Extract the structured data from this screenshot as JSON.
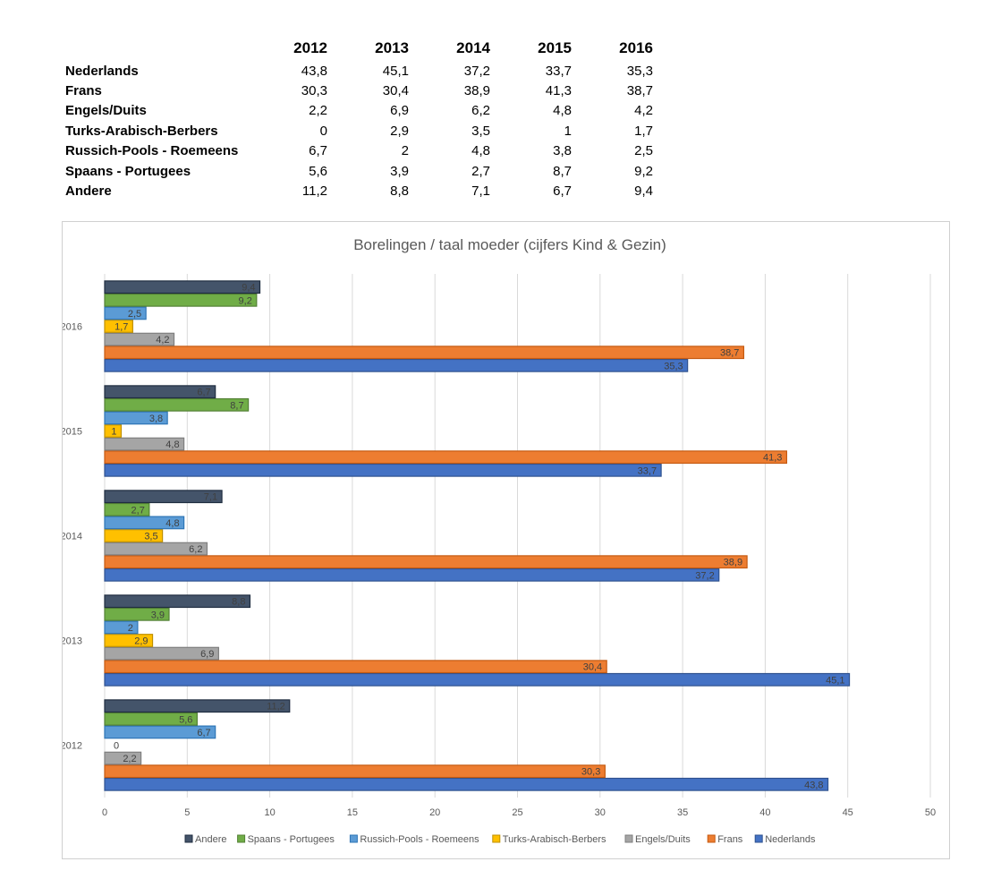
{
  "table": {
    "header": [
      "",
      "2012",
      "2013",
      "2014",
      "2015",
      "2016"
    ],
    "rows": [
      {
        "label": "Nederlands",
        "cells": [
          "43,8",
          "45,1",
          "37,2",
          "33,7",
          "35,3"
        ]
      },
      {
        "label": "Frans",
        "cells": [
          "30,3",
          "30,4",
          "38,9",
          "41,3",
          "38,7"
        ]
      },
      {
        "label": "Engels/Duits",
        "cells": [
          "2,2",
          "6,9",
          "6,2",
          "4,8",
          "4,2"
        ]
      },
      {
        "label": "Turks-Arabisch-Berbers",
        "cells": [
          "0",
          "2,9",
          "3,5",
          "1",
          "1,7"
        ]
      },
      {
        "label": "Russich-Pools - Roemeens",
        "cells": [
          "6,7",
          "2",
          "4,8",
          "3,8",
          "2,5"
        ]
      },
      {
        "label": "Spaans - Portugees",
        "cells": [
          "5,6",
          "3,9",
          "2,7",
          "8,7",
          "9,2"
        ]
      },
      {
        "label": "Andere",
        "cells": [
          "11,2",
          "8,8",
          "7,1",
          "6,7",
          "9,4"
        ]
      }
    ]
  },
  "chart_data": {
    "type": "bar",
    "orientation": "horizontal",
    "title": "Borelingen /  taal moeder (cijfers Kind & Gezin)",
    "categories": [
      "2012",
      "2013",
      "2014",
      "2015",
      "2016"
    ],
    "xlim": [
      0,
      50
    ],
    "xticks": [
      0,
      5,
      10,
      15,
      20,
      25,
      30,
      35,
      40,
      45,
      50
    ],
    "grid": true,
    "legend_position": "bottom",
    "series": [
      {
        "name": "Nederlands",
        "color": "#4472C4",
        "border": "#2F528F",
        "values": [
          43.8,
          45.1,
          37.2,
          33.7,
          35.3
        ],
        "labels": [
          "43,8",
          "45,1",
          "37,2",
          "33,7",
          "35,3"
        ]
      },
      {
        "name": "Frans",
        "color": "#ED7D31",
        "border": "#C55A11",
        "values": [
          30.3,
          30.4,
          38.9,
          41.3,
          38.7
        ],
        "labels": [
          "30,3",
          "30,4",
          "38,9",
          "41,3",
          "38,7"
        ]
      },
      {
        "name": "Engels/Duits",
        "color": "#A5A5A5",
        "border": "#7F7F7F",
        "values": [
          2.2,
          6.9,
          6.2,
          4.8,
          4.2
        ],
        "labels": [
          "2,2",
          "6,9",
          "6,2",
          "4,8",
          "4,2"
        ]
      },
      {
        "name": "Turks-Arabisch-Berbers",
        "color": "#FFC000",
        "border": "#BF9000",
        "values": [
          0,
          2.9,
          3.5,
          1,
          1.7
        ],
        "labels": [
          "0",
          "2,9",
          "3,5",
          "1",
          "1,7"
        ]
      },
      {
        "name": "Russich-Pools - Roemeens",
        "color": "#5B9BD5",
        "border": "#2E75B6",
        "values": [
          6.7,
          2,
          4.8,
          3.8,
          2.5
        ],
        "labels": [
          "6,7",
          "2",
          "4,8",
          "3,8",
          "2,5"
        ]
      },
      {
        "name": "Spaans - Portugees",
        "color": "#70AD47",
        "border": "#538135",
        "values": [
          5.6,
          3.9,
          2.7,
          8.7,
          9.2
        ],
        "labels": [
          "5,6",
          "3,9",
          "2,7",
          "8,7",
          "9,2"
        ]
      },
      {
        "name": "Andere",
        "color": "#44546A",
        "border": "#1F2D40",
        "values": [
          11.2,
          8.8,
          7.1,
          6.7,
          9.4
        ],
        "labels": [
          "11,2",
          "8,8",
          "7,1",
          "6,7",
          "9,4"
        ]
      }
    ],
    "legend_order": [
      "Andere",
      "Spaans - Portugees",
      "Russich-Pools - Roemeens",
      "Turks-Arabisch-Berbers",
      "Engels/Duits",
      "Frans",
      "Nederlands"
    ]
  }
}
